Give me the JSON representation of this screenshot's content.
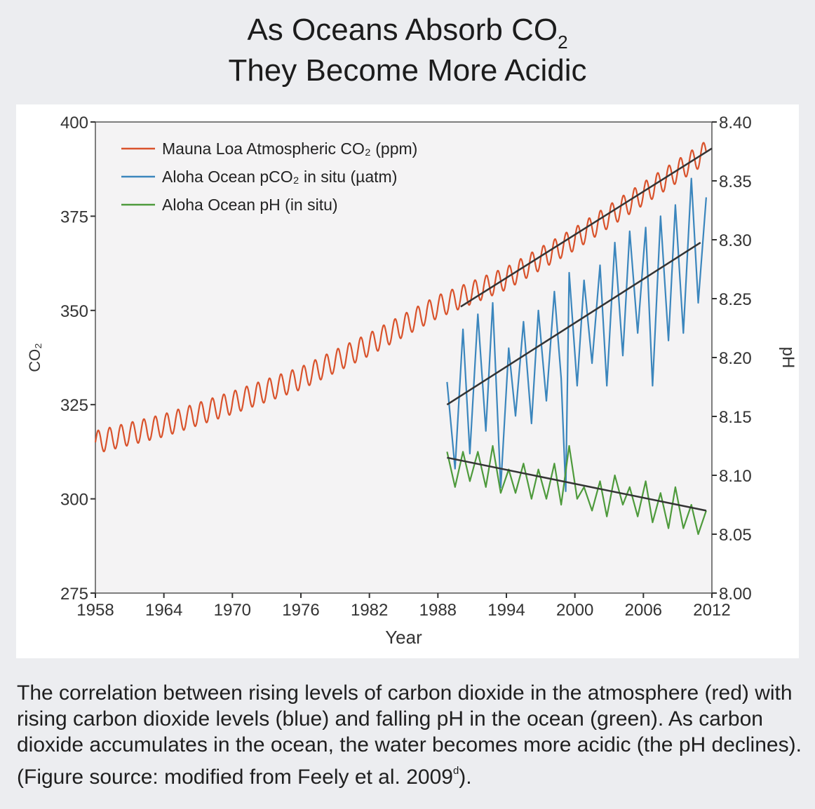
{
  "title": {
    "line1_prefix": "As Oceans Absorb CO",
    "line1_sub": "2",
    "line2": "They Become More Acidic"
  },
  "caption": {
    "text": "The correlation between rising levels of carbon dioxide in the atmosphere (red) with rising carbon dioxide levels (blue) and falling pH in the ocean (green). As carbon dioxide accumulates in the ocean, the water becomes more acidic (the pH declines). (Figure source: modified from Feely et al. 2009",
    "sup": "d",
    "suffix": ")."
  },
  "colors": {
    "mauna_loa": "#d9532c",
    "aloha_pco2": "#3b86bd",
    "aloha_ph": "#4e9a3c",
    "trend": "#333333",
    "plot_bg": "#f4f3f4"
  },
  "chart_data": {
    "type": "line",
    "xlabel": "Year",
    "ylabel_left": "CO₂",
    "ylabel_right": "pH",
    "xlim": [
      1958,
      2012
    ],
    "ylim_left": [
      275,
      400
    ],
    "ylim_right": [
      8.0,
      8.4
    ],
    "x_ticks": [
      1958,
      1964,
      1970,
      1976,
      1982,
      1988,
      1994,
      2000,
      2006,
      2012
    ],
    "y_left_ticks": [
      275,
      300,
      325,
      350,
      375,
      400
    ],
    "y_right_ticks": [
      "8.00",
      "8.05",
      "8.10",
      "8.15",
      "8.20",
      "8.25",
      "8.30",
      "8.35",
      "8.40"
    ],
    "legend_position": "top-left",
    "series": [
      {
        "name": "Mauna Loa Atmospheric CO₂ (ppm)",
        "axis": "left",
        "color_key": "mauna_loa",
        "seasonal_amplitude": 3.0,
        "x": [
          1958,
          1964,
          1970,
          1976,
          1982,
          1988,
          1994,
          2000,
          2006,
          2011.5
        ],
        "y": [
          315.0,
          319.5,
          325.5,
          332.0,
          341.0,
          351.0,
          358.5,
          369.0,
          381.0,
          392.0
        ]
      },
      {
        "name": "Aloha Ocean pCO₂ in situ (µatm)",
        "axis": "left",
        "color_key": "aloha_pco2",
        "x": [
          1988.8,
          1989.5,
          1990.2,
          1990.8,
          1991.5,
          1992.2,
          1992.8,
          1993.5,
          1994.2,
          1994.8,
          1995.5,
          1996.2,
          1996.8,
          1997.5,
          1998.2,
          1998.8,
          1999.2,
          1999.5,
          2000.2,
          2000.8,
          2001.5,
          2002.2,
          2002.8,
          2003.5,
          2004.2,
          2004.8,
          2005.5,
          2006.2,
          2006.8,
          2007.5,
          2008.2,
          2008.8,
          2009.5,
          2010.2,
          2010.8,
          2011.5
        ],
        "y": [
          331,
          308,
          345,
          312,
          349,
          318,
          352,
          303,
          340,
          322,
          347,
          320,
          350,
          326,
          355,
          332,
          302,
          360,
          330,
          358,
          336,
          362,
          330,
          368,
          338,
          371,
          344,
          372,
          330,
          375,
          342,
          378,
          344,
          385,
          352,
          380
        ]
      },
      {
        "name": "Aloha Ocean pH (in situ)",
        "axis": "right",
        "color_key": "aloha_ph",
        "x": [
          1988.8,
          1989.5,
          1990.2,
          1990.8,
          1991.5,
          1992.2,
          1992.8,
          1993.5,
          1994.2,
          1994.8,
          1995.5,
          1996.2,
          1996.8,
          1997.5,
          1998.2,
          1998.8,
          1999.5,
          2000.2,
          2000.8,
          2001.5,
          2002.2,
          2002.8,
          2003.5,
          2004.2,
          2004.8,
          2005.5,
          2006.2,
          2006.8,
          2007.5,
          2008.2,
          2008.8,
          2009.5,
          2010.2,
          2010.8,
          2011.5
        ],
        "y": [
          8.12,
          8.09,
          8.12,
          8.095,
          8.12,
          8.09,
          8.125,
          8.085,
          8.105,
          8.085,
          8.11,
          8.08,
          8.105,
          8.08,
          8.11,
          8.075,
          8.125,
          8.08,
          8.09,
          8.07,
          8.095,
          8.065,
          8.1,
          8.075,
          8.09,
          8.065,
          8.095,
          8.06,
          8.085,
          8.055,
          8.09,
          8.055,
          8.075,
          8.05,
          8.07
        ]
      }
    ],
    "trend_lines": [
      {
        "series": "Mauna Loa Atmospheric CO₂ (ppm)",
        "axis": "left",
        "x": [
          1990,
          2012
        ],
        "y": [
          351,
          393
        ]
      },
      {
        "series": "Aloha Ocean pCO₂ in situ (µatm)",
        "axis": "left",
        "x": [
          1988.8,
          2011
        ],
        "y": [
          325,
          368
        ]
      },
      {
        "series": "Aloha Ocean pH (in situ)",
        "axis": "right",
        "x": [
          1988.8,
          2011.5
        ],
        "y": [
          8.115,
          8.07
        ]
      }
    ]
  }
}
